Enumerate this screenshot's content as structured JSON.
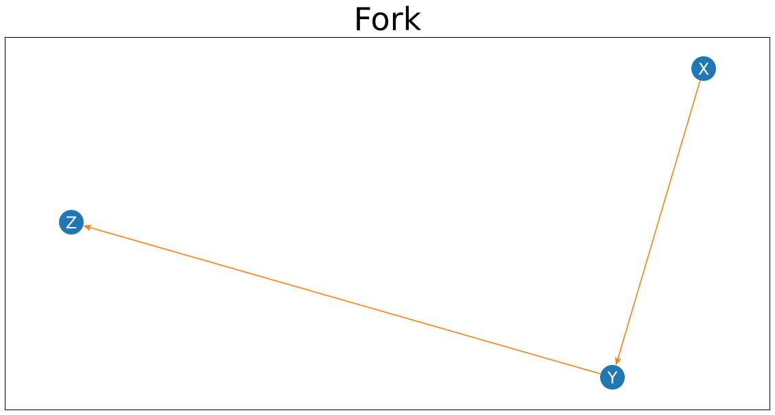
{
  "title": "Fork",
  "colors": {
    "node": "#1f77b4",
    "edge": "#ff7f0e",
    "node_label": "#ffffff",
    "frame": "#000000"
  },
  "nodes": [
    {
      "id": "X",
      "label": "X"
    },
    {
      "id": "Y",
      "label": "Y"
    },
    {
      "id": "Z",
      "label": "Z"
    }
  ],
  "edges": [
    {
      "from": "X",
      "to": "Y"
    },
    {
      "from": "Y",
      "to": "Z"
    }
  ]
}
